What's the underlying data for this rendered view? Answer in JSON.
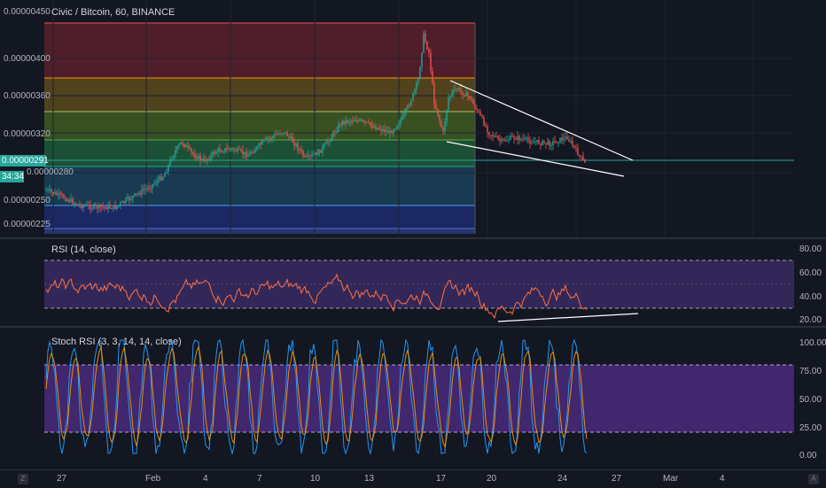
{
  "chart": {
    "title": "Civic / Bitcoin, 60, BINANCE",
    "price_axis": [
      "0.00000450",
      "0.00000400",
      "0.00000360",
      "0.00000320",
      "0.00000280",
      "0.00000250",
      "0.00000225"
    ],
    "current_price": "0.00000291",
    "bar_countdown": "34:34"
  },
  "rsi": {
    "title": "RSI (14, close)",
    "axis": [
      "80.00",
      "60.00",
      "40.00",
      "20.00"
    ]
  },
  "stoch": {
    "title": "Stoch RSI (3, 3, 14, 14, close)",
    "axis": [
      "100.00",
      "75.00",
      "50.00",
      "25.00",
      "0.00"
    ]
  },
  "time_axis": [
    "27",
    "Feb",
    "4",
    "7",
    "10",
    "13",
    "17",
    "20",
    "24",
    "27",
    "Mar",
    "4"
  ],
  "corner_buttons": [
    "Z",
    "A"
  ],
  "colors": {
    "background": "#131722",
    "up_candle": "#26a69a",
    "down_candle": "#ef5350",
    "rsi_line": "#ff7043",
    "stoch_k": "#2196f3",
    "stoch_d": "#ff9800",
    "indicator_band": "#7e57c2"
  }
}
